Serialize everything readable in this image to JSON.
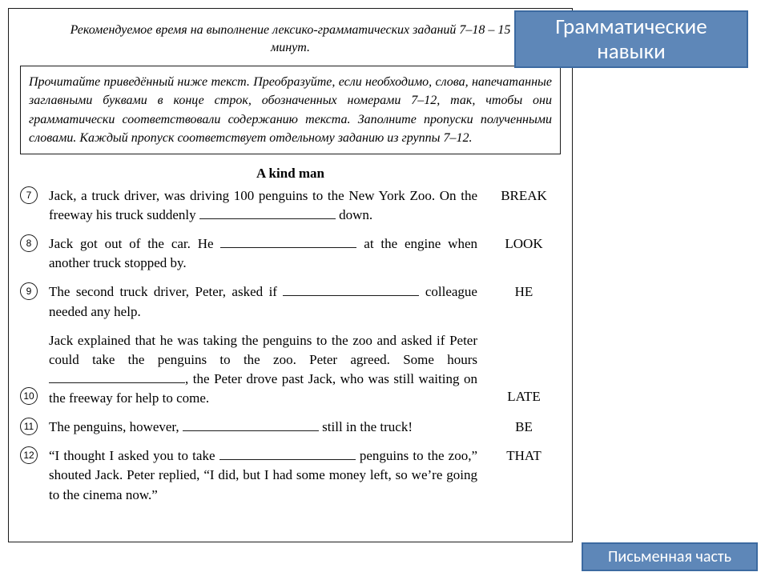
{
  "timing": "Рекомендуемое время на выполнение лексико-грамматических заданий 7–18 – 15 минут.",
  "instructions": "Прочитайте приведённый ниже текст. Преобразуйте, если необходимо, слова, напечатанные заглавными буквами в конце строк, обозначенных номерами 7–12, так, чтобы они грамматически соответствовали содержанию текста. Заполните пропуски полученными словами. Каждый пропуск соответствует отдельному заданию из группы 7–12.",
  "story_title": "A kind man",
  "questions": [
    {
      "num": "7",
      "text_before": "Jack, a truck driver, was driving 100 penguins to the New York Zoo. On the freeway his truck suddenly ",
      "text_after": " down.",
      "word": "BREAK"
    },
    {
      "num": "8",
      "text_before": "Jack got out of the car. He ",
      "text_after": " at the engine when another truck stopped by.",
      "word": "LOOK"
    },
    {
      "num": "9",
      "text_before": "The second truck driver, Peter, asked if ",
      "text_after": " colleague needed any help.",
      "word": "HE"
    },
    {
      "num": "10",
      "text_before": "Jack explained that he was taking the penguins to the zoo and asked if Peter could take the penguins to the zoo. Peter agreed. Some hours ",
      "text_after": ", the Peter drove past Jack, who was still waiting on the freeway for help to come.",
      "word": "LATE",
      "num_offset": "70px"
    },
    {
      "num": "11",
      "text_before": "The penguins, however, ",
      "text_after": " still in the truck!",
      "word": "BE"
    },
    {
      "num": "12",
      "text_before": "“I thought I asked you to take ",
      "text_after": " penguins to the zoo,” shouted Jack. Peter replied, “I did, but I had some money left, so we’re going to the cinema now.”",
      "word": "THAT"
    }
  ],
  "header_badge_line1": "Грамматические",
  "header_badge_line2": "навыки",
  "footer_badge": "Письменная часть",
  "colors": {
    "badge_bg": "#5e87b8",
    "badge_border": "#3c6aa1",
    "badge_text": "#ffffff"
  }
}
